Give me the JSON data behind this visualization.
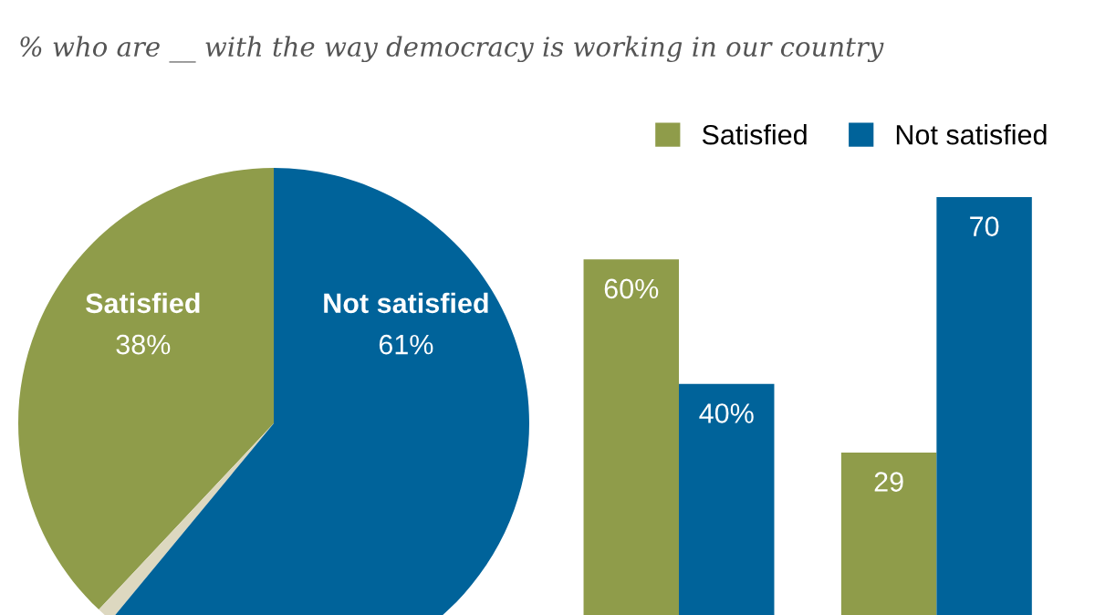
{
  "chart_data": [
    {
      "type": "pie",
      "subtitle": "% who are __ with the way democracy is working in our country",
      "categories": [
        "Satisfied",
        null,
        "Not satisfied"
      ],
      "values": [
        38,
        1,
        61
      ],
      "colors": [
        "#8f9c4a",
        "#ddd8c0",
        "#00639a"
      ],
      "value_labels": [
        "38%",
        null,
        "61%"
      ],
      "legend": false
    },
    {
      "type": "bar",
      "categories": [
        null,
        null
      ],
      "legend": "top right",
      "series": [
        {
          "name": "Satisfied",
          "color": "#8f9c4a",
          "values": [
            60,
            29
          ],
          "value_labels": [
            "60%",
            "29"
          ]
        },
        {
          "name": "Not satisfied",
          "color": "#00639a",
          "values": [
            40,
            70
          ],
          "value_labels": [
            "40%",
            "70"
          ]
        }
      ]
    }
  ]
}
